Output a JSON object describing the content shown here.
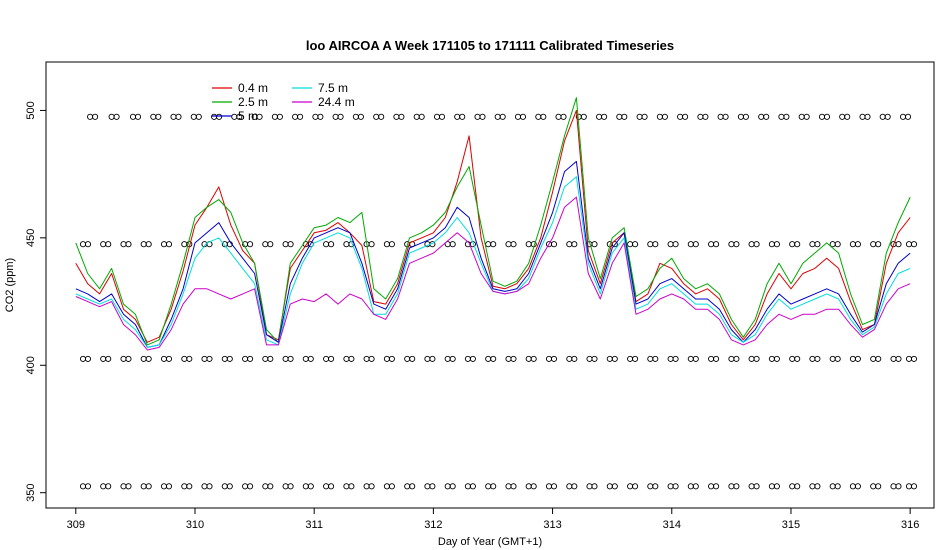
{
  "chart_data": {
    "type": "line",
    "title": "loo AIRCOA A  Week 171105 to 171111  Calibrated Timeseries",
    "xlabel": "Day of Year (GMT+1)",
    "ylabel": "CO2 (ppm)",
    "xlim": [
      308.75,
      316.2
    ],
    "ylim": [
      344,
      519
    ],
    "xticks": [
      "309",
      "310",
      "311",
      "312",
      "313",
      "314",
      "315",
      "316"
    ],
    "yticks": [
      "350",
      "400",
      "450",
      "500"
    ],
    "legend": {
      "position": "top-left",
      "columns": 2
    },
    "grid": false,
    "x": [
      309.0,
      309.1,
      309.2,
      309.3,
      309.4,
      309.5,
      309.6,
      309.7,
      309.8,
      309.9,
      310.0,
      310.1,
      310.2,
      310.3,
      310.4,
      310.5,
      310.6,
      310.7,
      310.8,
      310.9,
      311.0,
      311.1,
      311.2,
      311.3,
      311.4,
      311.5,
      311.6,
      311.7,
      311.8,
      311.9,
      312.0,
      312.1,
      312.2,
      312.3,
      312.4,
      312.5,
      312.6,
      312.7,
      312.8,
      312.9,
      313.0,
      313.1,
      313.2,
      313.3,
      313.4,
      313.5,
      313.6,
      313.7,
      313.8,
      313.9,
      314.0,
      314.1,
      314.2,
      314.3,
      314.4,
      314.5,
      314.6,
      314.7,
      314.8,
      314.9,
      315.0,
      315.1,
      315.2,
      315.3,
      315.4,
      315.5,
      315.6,
      315.7,
      315.8,
      315.9,
      316.0
    ],
    "series": [
      {
        "name": "0.4 m",
        "color": "#dd0000",
        "values": [
          440,
          432,
          428,
          436,
          422,
          418,
          409,
          411,
          422,
          437,
          455,
          462,
          470,
          455,
          445,
          440,
          412,
          410,
          438,
          445,
          452,
          453,
          456,
          452,
          447,
          425,
          424,
          432,
          448,
          450,
          452,
          458,
          472,
          490,
          450,
          431,
          430,
          432,
          438,
          450,
          468,
          488,
          500,
          445,
          432,
          448,
          452,
          425,
          428,
          440,
          438,
          432,
          428,
          430,
          426,
          416,
          410,
          416,
          428,
          436,
          430,
          436,
          438,
          442,
          438,
          425,
          414,
          416,
          440,
          452,
          458
        ]
      },
      {
        "name": "2.5 m",
        "color": "#00aa00",
        "values": [
          448,
          436,
          430,
          438,
          424,
          420,
          408,
          410,
          424,
          440,
          458,
          462,
          465,
          460,
          448,
          440,
          414,
          409,
          440,
          447,
          454,
          455,
          458,
          456,
          460,
          430,
          426,
          434,
          450,
          452,
          455,
          460,
          470,
          478,
          455,
          433,
          431,
          433,
          440,
          455,
          472,
          490,
          505,
          450,
          434,
          450,
          454,
          427,
          430,
          438,
          442,
          434,
          430,
          432,
          428,
          418,
          411,
          418,
          432,
          440,
          432,
          440,
          444,
          448,
          444,
          428,
          416,
          418,
          444,
          456,
          466
        ]
      },
      {
        "name": "5 m",
        "color": "#0000cc",
        "values": [
          430,
          428,
          425,
          428,
          420,
          416,
          407,
          408,
          418,
          430,
          448,
          452,
          456,
          448,
          442,
          436,
          412,
          409,
          432,
          442,
          450,
          452,
          454,
          452,
          440,
          424,
          422,
          430,
          446,
          448,
          450,
          454,
          462,
          458,
          442,
          430,
          429,
          430,
          436,
          448,
          460,
          476,
          480,
          442,
          430,
          446,
          452,
          424,
          426,
          432,
          434,
          430,
          426,
          426,
          422,
          414,
          409,
          414,
          422,
          428,
          424,
          426,
          428,
          430,
          428,
          420,
          413,
          416,
          432,
          440,
          444
        ]
      },
      {
        "name": "7.5 m",
        "color": "#00dddd",
        "values": [
          428,
          426,
          424,
          426,
          418,
          414,
          407,
          408,
          416,
          428,
          442,
          448,
          450,
          444,
          438,
          432,
          410,
          408,
          428,
          440,
          448,
          450,
          452,
          450,
          438,
          420,
          420,
          428,
          444,
          446,
          448,
          452,
          458,
          452,
          440,
          429,
          428,
          429,
          434,
          446,
          456,
          470,
          474,
          440,
          428,
          444,
          450,
          422,
          424,
          430,
          432,
          428,
          424,
          424,
          420,
          412,
          409,
          412,
          420,
          426,
          422,
          424,
          426,
          428,
          426,
          418,
          412,
          415,
          428,
          436,
          438
        ]
      },
      {
        "name": "24.4 m",
        "color": "#cc00cc",
        "values": [
          427,
          425,
          423,
          425,
          416,
          412,
          406,
          407,
          414,
          424,
          430,
          430,
          428,
          426,
          428,
          430,
          408,
          408,
          424,
          426,
          425,
          428,
          424,
          428,
          426,
          420,
          418,
          426,
          440,
          442,
          444,
          448,
          452,
          448,
          436,
          429,
          428,
          429,
          432,
          442,
          450,
          462,
          466,
          436,
          426,
          440,
          448,
          420,
          422,
          426,
          428,
          426,
          422,
          422,
          418,
          410,
          408,
          410,
          416,
          420,
          418,
          420,
          420,
          422,
          422,
          416,
          411,
          414,
          424,
          430,
          432
        ]
      }
    ],
    "reference_rows": [
      {
        "y": 497.5,
        "x_positions": [
          309.12,
          309.3,
          309.48,
          309.65,
          309.82,
          309.99,
          310.16,
          310.33,
          310.5,
          310.67,
          310.84,
          311.01,
          311.18,
          311.35,
          311.52,
          311.69,
          311.86,
          312.03,
          312.2,
          312.37,
          312.54,
          312.71,
          312.88,
          313.05,
          313.22,
          313.39,
          313.56,
          313.73,
          313.9,
          314.07,
          314.24,
          314.41,
          314.58,
          314.75,
          314.92,
          315.09,
          315.26,
          315.43,
          315.6,
          315.77,
          315.94
        ]
      },
      {
        "y": 447.5,
        "x_positions": [
          309.06,
          309.23,
          309.4,
          309.57,
          309.74,
          309.91,
          310.08,
          310.25,
          310.42,
          310.59,
          310.76,
          310.93,
          311.1,
          311.27,
          311.44,
          311.61,
          311.78,
          311.95,
          312.12,
          312.29,
          312.46,
          312.63,
          312.8,
          312.97,
          313.14,
          313.31,
          313.48,
          313.65,
          313.82,
          313.99,
          314.16,
          314.33,
          314.5,
          314.67,
          314.84,
          315.01,
          315.18,
          315.35,
          315.52,
          315.69,
          315.86,
          315.99
        ]
      },
      {
        "y": 402.5,
        "x_positions": [
          309.06,
          309.23,
          309.4,
          309.57,
          309.74,
          309.91,
          310.08,
          310.25,
          310.42,
          310.59,
          310.76,
          310.93,
          311.1,
          311.27,
          311.44,
          311.61,
          311.78,
          311.95,
          312.12,
          312.29,
          312.46,
          312.63,
          312.8,
          312.97,
          313.14,
          313.31,
          313.48,
          313.65,
          313.82,
          313.99,
          314.16,
          314.33,
          314.5,
          314.67,
          314.84,
          315.01,
          315.18,
          315.35,
          315.52,
          315.69,
          315.86,
          315.99
        ]
      },
      {
        "y": 352.5,
        "x_positions": [
          309.06,
          309.23,
          309.4,
          309.57,
          309.74,
          309.91,
          310.08,
          310.25,
          310.42,
          310.59,
          310.76,
          310.93,
          311.1,
          311.27,
          311.44,
          311.61,
          311.78,
          311.95,
          312.12,
          312.29,
          312.46,
          312.63,
          312.8,
          312.97,
          313.14,
          313.31,
          313.48,
          313.65,
          313.82,
          313.99,
          314.16,
          314.33,
          314.5,
          314.67,
          314.84,
          315.01,
          315.18,
          315.35,
          315.52,
          315.69,
          315.86,
          315.99
        ]
      }
    ]
  }
}
